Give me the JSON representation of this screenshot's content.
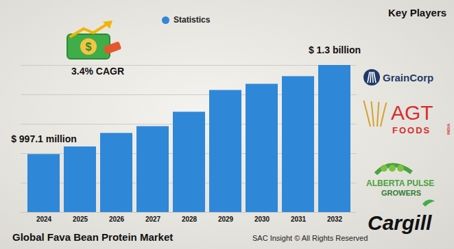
{
  "chart_data": {
    "type": "bar",
    "title": "Global Fava Bean Protein Market",
    "caption": "SAC Insight © All Rights Reserved",
    "categories": [
      "2024",
      "2025",
      "2026",
      "2027",
      "2028",
      "2029",
      "2030",
      "2031",
      "2032"
    ],
    "series": [
      {
        "name": "Statistics",
        "color": "#2f87d8",
        "values": [
          997.1,
          1023,
          1069,
          1092,
          1141,
          1215,
          1236,
          1262,
          1300
        ],
        "value_labels": [
          "$ 997.1 million",
          null,
          null,
          null,
          null,
          null,
          null,
          null,
          "$ 1.3 billion"
        ]
      }
    ],
    "data_labels": true,
    "annotations": [
      {
        "text": "3.4% CAGR"
      }
    ],
    "ylim": [
      800,
      1300
    ],
    "yticks": [
      800,
      900,
      1000,
      1100,
      1200,
      1300
    ],
    "grid": true,
    "tick_labels": "x",
    "legend": "top"
  },
  "key_players": {
    "title": "Key Players",
    "logos": [
      {
        "lines": [
          "GrainCorp"
        ]
      },
      {
        "lines": [
          "AGT",
          "FOODS",
          "INDIA"
        ]
      },
      {
        "lines": [
          "ALBERTA PULSE",
          "GROWERS"
        ]
      },
      {
        "lines": [
          "Cargill"
        ]
      }
    ]
  }
}
